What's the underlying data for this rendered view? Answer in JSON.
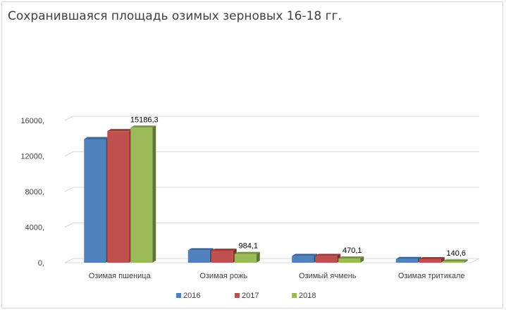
{
  "chart_data": {
    "type": "bar",
    "title": "Сохранившаяся площадь озимых зерновых 16-18 гг.",
    "categories": [
      "Озимая пшеница",
      "Озимая рожь",
      "Озимый ячмень",
      "Озимая тритикале"
    ],
    "series": [
      {
        "name": "2016",
        "color": "#4f81bd",
        "values": [
          13900,
          1400,
          760,
          420
        ]
      },
      {
        "name": "2017",
        "color": "#c0504d",
        "values": [
          14800,
          1350,
          760,
          400
        ]
      },
      {
        "name": "2018",
        "color": "#9bbb59",
        "values": [
          15186.3,
          984.1,
          470.1,
          140.6
        ]
      }
    ],
    "data_labels": {
      "series": "2018",
      "values": [
        "15186,3",
        "984,1",
        "470,1",
        "140,6"
      ]
    },
    "y_ticks": [
      "0,",
      "4000,",
      "8000,",
      "12000,",
      "16000,"
    ],
    "ylim": [
      0,
      16000
    ],
    "grid": true,
    "legend": "bottom",
    "style": "3d-clustered-column"
  }
}
